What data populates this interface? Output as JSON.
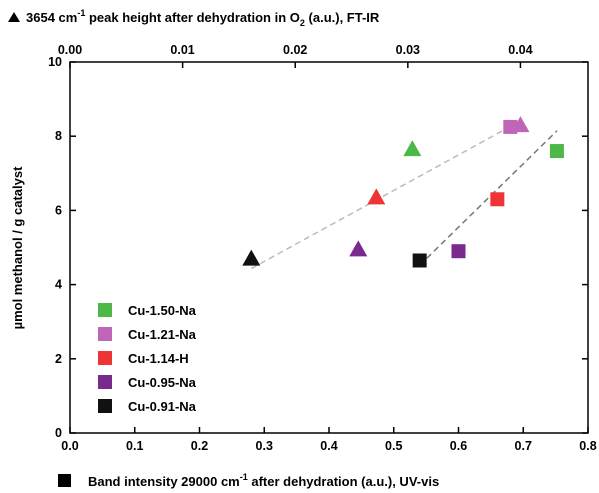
{
  "chart_data": {
    "type": "scatter",
    "xlabel": [
      "Band intensity 29000 cm",
      "-1",
      " after dehydration (a.u.), UV-vis"
    ],
    "x2label": [
      "3654 cm",
      "-1",
      " peak height after dehydration in O",
      "2",
      " (a.u.), FT-IR"
    ],
    "ylabel": "µmol methanol / g catalyst",
    "xlim": [
      0,
      0.8
    ],
    "xticks": [
      {
        "value": 0,
        "label": "0.0"
      },
      {
        "value": 0.1,
        "label": "0.1"
      },
      {
        "value": 0.2,
        "label": "0.2"
      },
      {
        "value": 0.3,
        "label": "0.3"
      },
      {
        "value": 0.4,
        "label": "0.4"
      },
      {
        "value": 0.5,
        "label": "0.5"
      },
      {
        "value": 0.6,
        "label": "0.6"
      },
      {
        "value": 0.7,
        "label": "0.7"
      },
      {
        "value": 0.8,
        "label": "0.8"
      }
    ],
    "x2lim": [
      0,
      0.046
    ],
    "x2ticks": [
      {
        "value": 0,
        "label": "0.00"
      },
      {
        "value": 0.01,
        "label": "0.01"
      },
      {
        "value": 0.02,
        "label": "0.02"
      },
      {
        "value": 0.03,
        "label": "0.03"
      },
      {
        "value": 0.04,
        "label": "0.04"
      }
    ],
    "ylim": [
      0,
      10
    ],
    "yticks": [
      0,
      2,
      4,
      6,
      8,
      10
    ],
    "series": [
      {
        "name": "Cu-1.50-Na",
        "color": "#4cb848",
        "x": [
          0.752
        ],
        "values": [
          7.6
        ],
        "x2": [
          0.0304
        ],
        "values2": [
          7.65
        ]
      },
      {
        "name": "Cu-1.21-Na",
        "color": "#c066b8",
        "x": [
          0.68
        ],
        "values": [
          8.25
        ],
        "x2": [
          0.04
        ],
        "values2": [
          8.3
        ]
      },
      {
        "name": "Cu-1.14-H",
        "color": "#ee3434",
        "x": [
          0.66
        ],
        "values": [
          6.3
        ],
        "x2": [
          0.0272
        ],
        "values2": [
          6.35
        ]
      },
      {
        "name": "Cu-0.95-Na",
        "color": "#7a2a8e",
        "x": [
          0.6
        ],
        "values": [
          4.9
        ],
        "x2": [
          0.0256
        ],
        "values2": [
          4.95
        ]
      },
      {
        "name": "Cu-0.91-Na",
        "color": "#111111",
        "x": [
          0.54
        ],
        "values": [
          4.65
        ],
        "x2": [
          0.0161
        ],
        "values2": [
          4.7
        ]
      }
    ]
  }
}
